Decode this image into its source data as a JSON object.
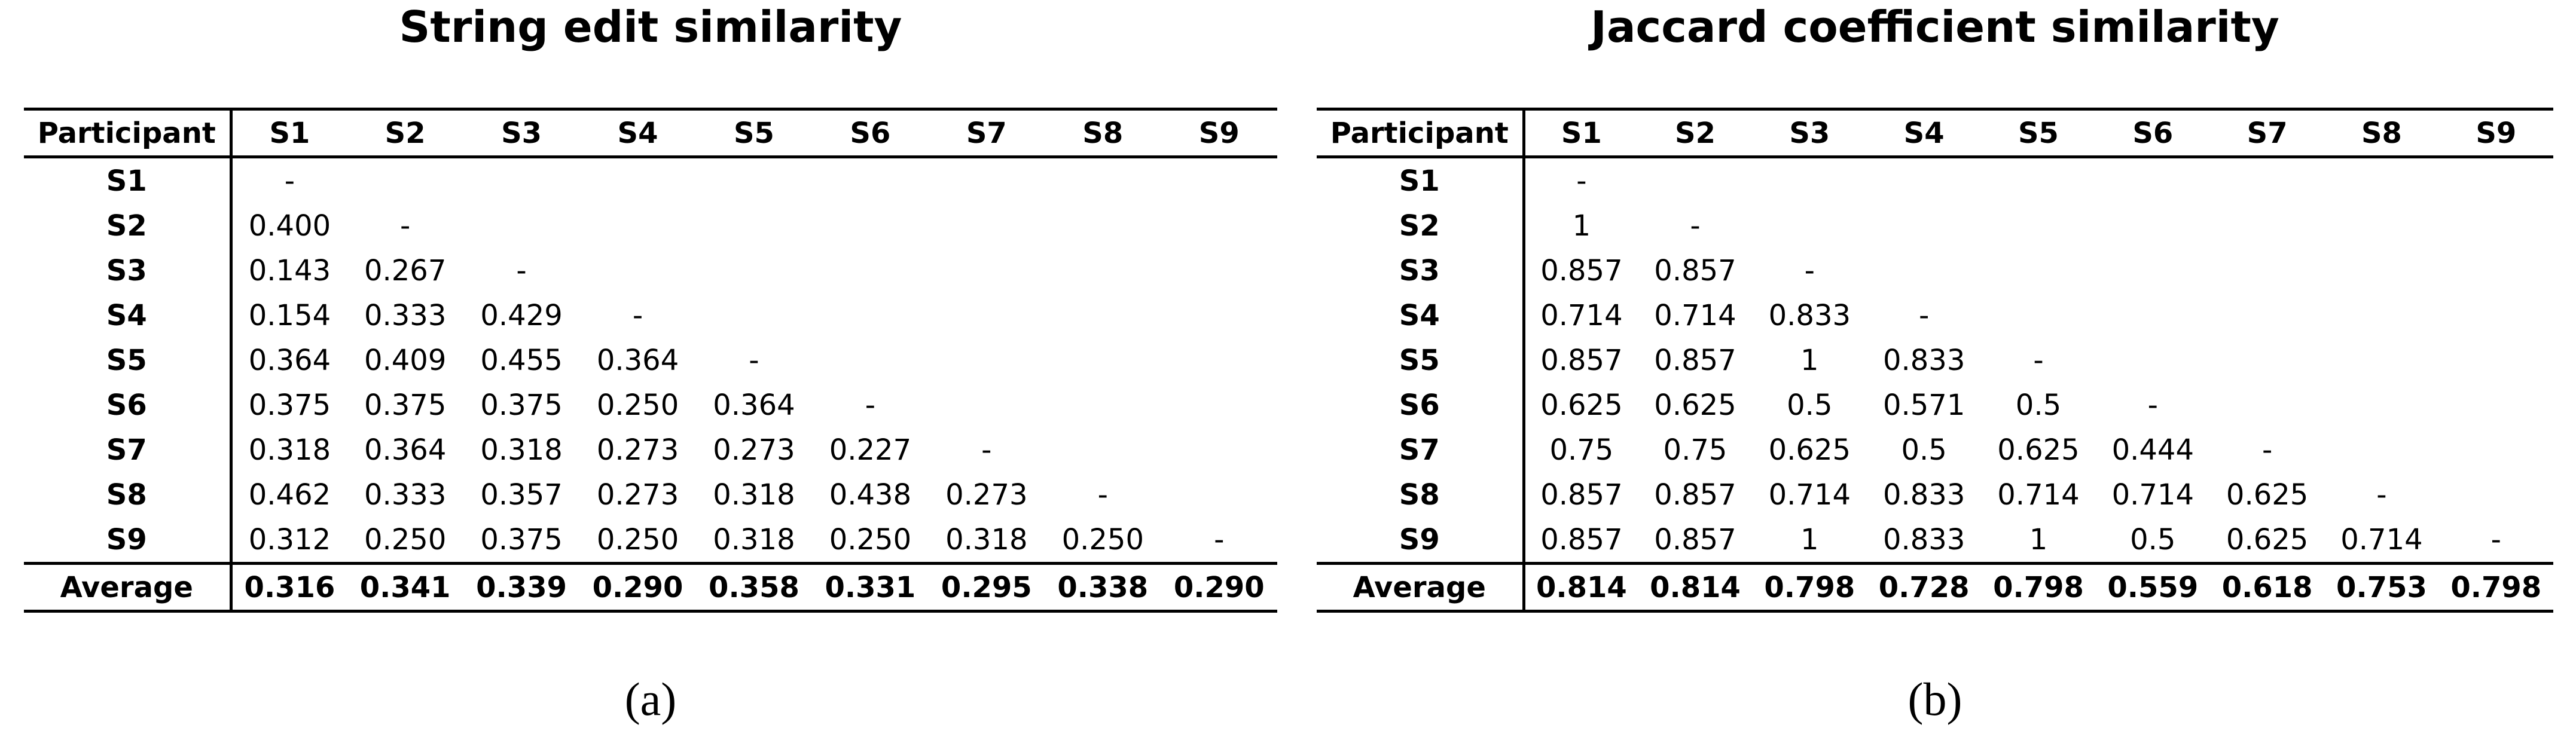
{
  "panels": [
    {
      "title": "String edit similarity",
      "caption": "(a)",
      "header_label": "Participant",
      "columns": [
        "S1",
        "S2",
        "S3",
        "S4",
        "S5",
        "S6",
        "S7",
        "S8",
        "S9"
      ],
      "rows": [
        {
          "label": "S1",
          "values": [
            "-",
            "",
            "",
            "",
            "",
            "",
            "",
            "",
            ""
          ]
        },
        {
          "label": "S2",
          "values": [
            "0.400",
            "-",
            "",
            "",
            "",
            "",
            "",
            "",
            ""
          ]
        },
        {
          "label": "S3",
          "values": [
            "0.143",
            "0.267",
            "-",
            "",
            "",
            "",
            "",
            "",
            ""
          ]
        },
        {
          "label": "S4",
          "values": [
            "0.154",
            "0.333",
            "0.429",
            "-",
            "",
            "",
            "",
            "",
            ""
          ]
        },
        {
          "label": "S5",
          "values": [
            "0.364",
            "0.409",
            "0.455",
            "0.364",
            "-",
            "",
            "",
            "",
            ""
          ]
        },
        {
          "label": "S6",
          "values": [
            "0.375",
            "0.375",
            "0.375",
            "0.250",
            "0.364",
            "-",
            "",
            "",
            ""
          ]
        },
        {
          "label": "S7",
          "values": [
            "0.318",
            "0.364",
            "0.318",
            "0.273",
            "0.273",
            "0.227",
            "-",
            "",
            ""
          ]
        },
        {
          "label": "S8",
          "values": [
            "0.462",
            "0.333",
            "0.357",
            "0.273",
            "0.318",
            "0.438",
            "0.273",
            "-",
            ""
          ]
        },
        {
          "label": "S9",
          "values": [
            "0.312",
            "0.250",
            "0.375",
            "0.250",
            "0.318",
            "0.250",
            "0.318",
            "0.250",
            "-"
          ]
        }
      ],
      "average_label": "Average",
      "averages": [
        "0.316",
        "0.341",
        "0.339",
        "0.290",
        "0.358",
        "0.331",
        "0.295",
        "0.338",
        "0.290"
      ]
    },
    {
      "title": "Jaccard coefficient similarity",
      "caption": "(b)",
      "header_label": "Participant",
      "columns": [
        "S1",
        "S2",
        "S3",
        "S4",
        "S5",
        "S6",
        "S7",
        "S8",
        "S9"
      ],
      "rows": [
        {
          "label": "S1",
          "values": [
            "-",
            "",
            "",
            "",
            "",
            "",
            "",
            "",
            ""
          ]
        },
        {
          "label": "S2",
          "values": [
            "1",
            "-",
            "",
            "",
            "",
            "",
            "",
            "",
            ""
          ]
        },
        {
          "label": "S3",
          "values": [
            "0.857",
            "0.857",
            "-",
            "",
            "",
            "",
            "",
            "",
            ""
          ]
        },
        {
          "label": "S4",
          "values": [
            "0.714",
            "0.714",
            "0.833",
            "-",
            "",
            "",
            "",
            "",
            ""
          ]
        },
        {
          "label": "S5",
          "values": [
            "0.857",
            "0.857",
            "1",
            "0.833",
            "-",
            "",
            "",
            "",
            ""
          ]
        },
        {
          "label": "S6",
          "values": [
            "0.625",
            "0.625",
            "0.5",
            "0.571",
            "0.5",
            "-",
            "",
            "",
            ""
          ]
        },
        {
          "label": "S7",
          "values": [
            "0.75",
            "0.75",
            "0.625",
            "0.5",
            "0.625",
            "0.444",
            "-",
            "",
            ""
          ]
        },
        {
          "label": "S8",
          "values": [
            "0.857",
            "0.857",
            "0.714",
            "0.833",
            "0.714",
            "0.714",
            "0.625",
            "-",
            ""
          ]
        },
        {
          "label": "S9",
          "values": [
            "0.857",
            "0.857",
            "1",
            "0.833",
            "1",
            "0.5",
            "0.625",
            "0.714",
            "-"
          ]
        }
      ],
      "average_label": "Average",
      "averages": [
        "0.814",
        "0.814",
        "0.798",
        "0.728",
        "0.798",
        "0.559",
        "0.618",
        "0.753",
        "0.798"
      ]
    }
  ]
}
